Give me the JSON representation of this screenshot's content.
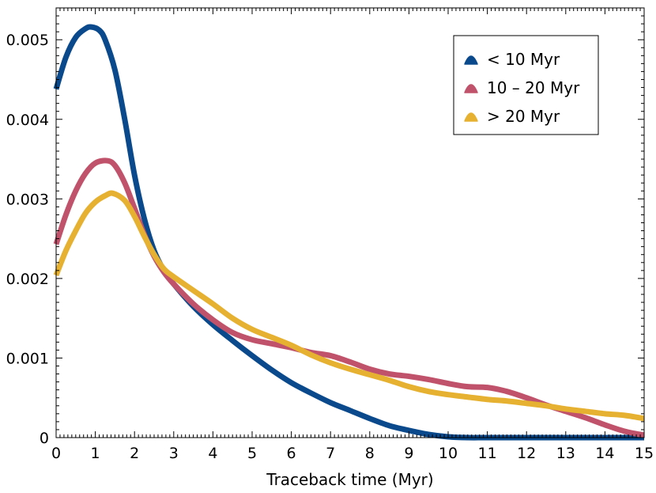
{
  "chart_data": {
    "type": "line",
    "title": "",
    "xlabel": "Traceback time (Myr)",
    "ylabel": "",
    "xlim": [
      0,
      15
    ],
    "ylim": [
      0,
      0.0054
    ],
    "grid": false,
    "legend_position": "top-right",
    "x_ticks": [
      0,
      1,
      2,
      3,
      4,
      5,
      6,
      7,
      8,
      9,
      10,
      11,
      12,
      13,
      14,
      15
    ],
    "x_tick_labels": [
      "0",
      "1",
      "2",
      "3",
      "4",
      "5",
      "6",
      "7",
      "8",
      "9",
      "10",
      "11",
      "12",
      "13",
      "14",
      "15"
    ],
    "y_ticks": [
      0,
      0.001,
      0.002,
      0.003,
      0.004,
      0.005
    ],
    "y_tick_labels": [
      "0",
      "0.001",
      "0.002",
      "0.003",
      "0.004",
      "0.005"
    ],
    "series": [
      {
        "name": "< 10 Myr",
        "color": "#0a4a8c",
        "x": [
          0,
          0.25,
          0.5,
          0.75,
          0.9,
          1.1,
          1.25,
          1.5,
          1.75,
          2.0,
          2.25,
          2.5,
          2.75,
          3.0,
          3.5,
          4.0,
          4.5,
          5.0,
          5.5,
          6.0,
          6.5,
          7.0,
          7.5,
          8.0,
          8.5,
          9.0,
          9.5,
          10.0,
          10.5,
          11.0,
          12.0,
          13.0,
          14.0,
          15.0
        ],
        "y": [
          0.00438,
          0.00478,
          0.00503,
          0.00514,
          0.00516,
          0.00512,
          0.005,
          0.00462,
          0.004,
          0.0033,
          0.00275,
          0.00235,
          0.0021,
          0.00193,
          0.00165,
          0.00142,
          0.00122,
          0.00103,
          0.00085,
          0.00069,
          0.00056,
          0.00044,
          0.00034,
          0.00024,
          0.00015,
          9e-05,
          4e-05,
          1e-05,
          0.0,
          0.0,
          0.0,
          0.0,
          0.0,
          0.0
        ]
      },
      {
        "name": "10 – 20 Myr",
        "color": "#c0536b",
        "x": [
          0,
          0.25,
          0.5,
          0.75,
          1.0,
          1.3,
          1.5,
          1.75,
          2.0,
          2.25,
          2.5,
          2.75,
          3.0,
          3.5,
          4.0,
          4.5,
          5.0,
          5.5,
          6.0,
          6.5,
          7.0,
          7.5,
          8.0,
          8.5,
          9.0,
          9.5,
          10.0,
          10.5,
          11.0,
          11.5,
          12.0,
          12.5,
          13.0,
          13.5,
          14.0,
          14.5,
          15.0
        ],
        "y": [
          0.00243,
          0.0028,
          0.0031,
          0.00332,
          0.00345,
          0.00348,
          0.00342,
          0.0032,
          0.00288,
          0.00255,
          0.00228,
          0.00208,
          0.00193,
          0.00168,
          0.00148,
          0.00132,
          0.00123,
          0.00118,
          0.00113,
          0.00107,
          0.00103,
          0.00095,
          0.00086,
          0.0008,
          0.00077,
          0.00073,
          0.00068,
          0.00064,
          0.00063,
          0.00058,
          0.0005,
          0.00041,
          0.00033,
          0.00025,
          0.00016,
          8e-05,
          3e-05
        ]
      },
      {
        "name": "> 20 Myr",
        "color": "#e6b130",
        "x": [
          0,
          0.25,
          0.5,
          0.75,
          1.0,
          1.25,
          1.45,
          1.75,
          2.0,
          2.25,
          2.5,
          2.75,
          3.0,
          3.5,
          4.0,
          4.5,
          5.0,
          5.5,
          6.0,
          6.5,
          7.0,
          7.5,
          8.0,
          8.5,
          9.0,
          9.5,
          10.0,
          10.5,
          11.0,
          11.5,
          12.0,
          12.5,
          13.0,
          13.5,
          14.0,
          14.5,
          15.0
        ],
        "y": [
          0.00204,
          0.00235,
          0.0026,
          0.00282,
          0.00296,
          0.00304,
          0.00307,
          0.00298,
          0.00278,
          0.00253,
          0.0023,
          0.00212,
          0.00202,
          0.00185,
          0.00168,
          0.0015,
          0.00136,
          0.00126,
          0.00116,
          0.00104,
          0.00094,
          0.00086,
          0.00079,
          0.00072,
          0.00064,
          0.00058,
          0.00054,
          0.00051,
          0.00048,
          0.00046,
          0.00043,
          0.0004,
          0.00036,
          0.00033,
          0.0003,
          0.00028,
          0.00024
        ]
      }
    ]
  }
}
